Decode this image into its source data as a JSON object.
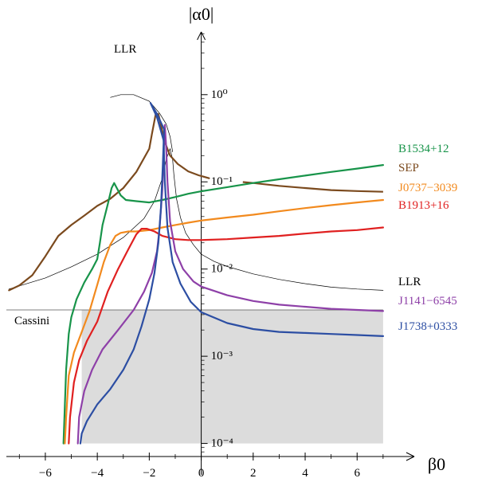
{
  "chart_data": {
    "type": "line",
    "title": "",
    "xlabel": "β0",
    "ylabel": "|α0|",
    "xlim": [
      -7.5,
      8.2
    ],
    "ylog10lim": [
      -4.15,
      0.72
    ],
    "xticks": [
      -6,
      -4,
      -2,
      0,
      2,
      4,
      6
    ],
    "xtick_labels": [
      "−6",
      "−4",
      "−2",
      "0",
      "2",
      "4",
      "6"
    ],
    "yticks_log10": [
      0,
      -1,
      -2,
      -3,
      -4
    ],
    "ytick_labels": [
      "10⁰",
      "10⁻¹",
      "10⁻²",
      "10⁻³",
      "10⁻⁴"
    ],
    "cassini": {
      "label": "Cassini",
      "value": 0.0034,
      "xmin": -7.5,
      "xmax": 7.0
    },
    "excluded_region": {
      "xmin": -4.6,
      "xmax": 7.0,
      "ymin": 0.0001,
      "ymax": 0.0034,
      "color": "#dcdcdc"
    },
    "series": [
      {
        "name": "LLR",
        "label": "LLR",
        "color": "#000000",
        "width": 0.7,
        "points": [
          [
            -7.4,
            0.0059
          ],
          [
            -6,
            0.0079
          ],
          [
            -5,
            0.0106
          ],
          [
            -4,
            0.0148
          ],
          [
            -3,
            0.023
          ],
          [
            -2.2,
            0.038
          ],
          [
            -1.8,
            0.06
          ],
          [
            -1.5,
            0.11
          ],
          [
            -1.35,
            0.18
          ],
          [
            -1.2,
            0.24
          ],
          [
            -1.1,
            0.18
          ],
          [
            -1.05,
            0.12
          ],
          [
            -0.95,
            0.064
          ],
          [
            -0.8,
            0.039
          ],
          [
            -0.6,
            0.026
          ],
          [
            -0.3,
            0.019
          ],
          [
            0,
            0.0148
          ],
          [
            0.5,
            0.0122
          ],
          [
            1,
            0.0107
          ],
          [
            2,
            0.0088
          ],
          [
            3,
            0.0076
          ],
          [
            4,
            0.0068
          ],
          [
            5,
            0.0062
          ],
          [
            6,
            0.0059
          ],
          [
            7,
            0.0057
          ]
        ],
        "upper_branch": [
          [
            -3.5,
            0.93
          ],
          [
            -3.1,
            1.0
          ],
          [
            -2.6,
            1.0
          ],
          [
            -2.0,
            0.84
          ],
          [
            -1.6,
            0.61
          ],
          [
            -1.35,
            0.46
          ],
          [
            -1.2,
            0.33
          ],
          [
            -1.1,
            0.22
          ]
        ]
      },
      {
        "name": "SEP",
        "label": "SEP",
        "color": "#7b4a1e",
        "width": 2.2,
        "points": [
          [
            -7.4,
            0.0057
          ],
          [
            -7.0,
            0.0065
          ],
          [
            -6.5,
            0.0085
          ],
          [
            -6,
            0.014
          ],
          [
            -5.5,
            0.024
          ],
          [
            -5,
            0.032
          ],
          [
            -4.5,
            0.041
          ],
          [
            -4,
            0.053
          ],
          [
            -3.5,
            0.064
          ],
          [
            -3,
            0.085
          ],
          [
            -2.5,
            0.13
          ],
          [
            -2.0,
            0.24
          ],
          [
            -1.9,
            0.35
          ],
          [
            -1.75,
            0.6
          ],
          [
            -1.65,
            0.6
          ],
          [
            -1.5,
            0.38
          ],
          [
            -1.35,
            0.26
          ],
          [
            -1.2,
            0.2
          ],
          [
            -0.9,
            0.16
          ],
          [
            -0.5,
            0.132
          ],
          [
            -0.1,
            0.119
          ],
          [
            0.3,
            0.11
          ]
        ],
        "right_branch": [
          [
            1.6,
            0.0995
          ],
          [
            2,
            0.097
          ],
          [
            3,
            0.09
          ],
          [
            4,
            0.085
          ],
          [
            5,
            0.0805
          ],
          [
            6,
            0.0785
          ],
          [
            7,
            0.077
          ]
        ]
      },
      {
        "name": "B1534+12",
        "label": "B1534+12",
        "color": "#18944a",
        "width": 2.2,
        "points": [
          [
            -5.3,
            0.0001
          ],
          [
            -5.2,
            0.0007
          ],
          [
            -5.1,
            0.0018
          ],
          [
            -5,
            0.0028
          ],
          [
            -4.8,
            0.0045
          ],
          [
            -4.5,
            0.007
          ],
          [
            -4.2,
            0.01
          ],
          [
            -4,
            0.013
          ],
          [
            -3.9,
            0.02
          ],
          [
            -3.8,
            0.032
          ],
          [
            -3.6,
            0.055
          ],
          [
            -3.45,
            0.085
          ],
          [
            -3.35,
            0.097
          ],
          [
            -3.25,
            0.085
          ],
          [
            -3.1,
            0.07
          ],
          [
            -2.9,
            0.062
          ],
          [
            -2.5,
            0.06
          ],
          [
            -2.0,
            0.058
          ],
          [
            -1.5,
            0.062
          ],
          [
            -1.0,
            0.067
          ],
          [
            -0.5,
            0.073
          ],
          [
            0,
            0.078
          ],
          [
            1,
            0.087
          ],
          [
            2,
            0.097
          ],
          [
            3,
            0.107
          ],
          [
            4,
            0.118
          ],
          [
            5,
            0.13
          ],
          [
            6,
            0.142
          ],
          [
            7,
            0.156
          ]
        ]
      },
      {
        "name": "J0737-3039",
        "label": "J0737−3039",
        "color": "#f28a1e",
        "width": 2.2,
        "points": [
          [
            -5.25,
            0.0001
          ],
          [
            -5.2,
            0.0002
          ],
          [
            -5.1,
            0.0006
          ],
          [
            -4.9,
            0.0011
          ],
          [
            -4.6,
            0.0019
          ],
          [
            -4.3,
            0.0033
          ],
          [
            -4.0,
            0.0066
          ],
          [
            -3.75,
            0.012
          ],
          [
            -3.5,
            0.019
          ],
          [
            -3.3,
            0.024
          ],
          [
            -3.1,
            0.026
          ],
          [
            -2.8,
            0.027
          ],
          [
            -2.5,
            0.027
          ],
          [
            -2.0,
            0.028
          ],
          [
            -1.5,
            0.03
          ],
          [
            -1,
            0.032
          ],
          [
            -0.5,
            0.034
          ],
          [
            0,
            0.036
          ],
          [
            1,
            0.039
          ],
          [
            2,
            0.042
          ],
          [
            3,
            0.046
          ],
          [
            4,
            0.05
          ],
          [
            5,
            0.054
          ],
          [
            6,
            0.058
          ],
          [
            7,
            0.062
          ]
        ]
      },
      {
        "name": "B1913+16",
        "label": "B1913+16",
        "color": "#e02020",
        "width": 2.2,
        "points": [
          [
            -5.1,
            0.0001
          ],
          [
            -5.05,
            0.0002
          ],
          [
            -4.9,
            0.0005
          ],
          [
            -4.7,
            0.0009
          ],
          [
            -4.4,
            0.0015
          ],
          [
            -4.0,
            0.0025
          ],
          [
            -3.6,
            0.0055
          ],
          [
            -3.2,
            0.01
          ],
          [
            -2.8,
            0.017
          ],
          [
            -2.5,
            0.025
          ],
          [
            -2.3,
            0.029
          ],
          [
            -2.1,
            0.029
          ],
          [
            -1.8,
            0.027
          ],
          [
            -1.5,
            0.024
          ],
          [
            -1,
            0.022
          ],
          [
            -0.5,
            0.0215
          ],
          [
            0,
            0.0215
          ],
          [
            1,
            0.022
          ],
          [
            2,
            0.023
          ],
          [
            3,
            0.024
          ],
          [
            4,
            0.0255
          ],
          [
            5,
            0.027
          ],
          [
            6,
            0.028
          ],
          [
            7,
            0.03
          ]
        ]
      },
      {
        "name": "J1141-6545",
        "label": "J1141−6545",
        "color": "#8e40a8",
        "width": 2.2,
        "points": [
          [
            -4.75,
            0.0001
          ],
          [
            -4.7,
            0.0002
          ],
          [
            -4.5,
            0.0004
          ],
          [
            -4.2,
            0.0007
          ],
          [
            -3.8,
            0.0012
          ],
          [
            -3.2,
            0.002
          ],
          [
            -2.6,
            0.0034
          ],
          [
            -2.2,
            0.0055
          ],
          [
            -1.9,
            0.009
          ],
          [
            -1.7,
            0.016
          ],
          [
            -1.6,
            0.03
          ],
          [
            -1.5,
            0.08
          ],
          [
            -1.45,
            0.2
          ],
          [
            -1.4,
            0.45
          ],
          [
            -1.35,
            0.25
          ],
          [
            -1.3,
            0.1
          ],
          [
            -1.2,
            0.035
          ],
          [
            -1.0,
            0.016
          ],
          [
            -0.7,
            0.01
          ],
          [
            -0.3,
            0.0072
          ],
          [
            0,
            0.0063
          ],
          [
            1,
            0.005
          ],
          [
            2,
            0.0043
          ],
          [
            3,
            0.0039
          ],
          [
            4,
            0.0037
          ],
          [
            5,
            0.0035
          ],
          [
            6,
            0.0034
          ],
          [
            7,
            0.0033
          ]
        ]
      },
      {
        "name": "J1738+0333",
        "label": "J1738+0333",
        "color": "#2c4ea3",
        "width": 2.2,
        "points": [
          [
            -4.65,
            0.0001
          ],
          [
            -4.6,
            0.00013
          ],
          [
            -4.4,
            0.00018
          ],
          [
            -4.0,
            0.00028
          ],
          [
            -3.5,
            0.00042
          ],
          [
            -3.0,
            0.0007
          ],
          [
            -2.6,
            0.0012
          ],
          [
            -2.3,
            0.0022
          ],
          [
            -2.0,
            0.0045
          ],
          [
            -1.8,
            0.009
          ],
          [
            -1.65,
            0.02
          ],
          [
            -1.55,
            0.05
          ],
          [
            -1.48,
            0.15
          ],
          [
            -1.43,
            0.4
          ],
          [
            -1.7,
            0.6
          ],
          [
            -1.95,
            0.8
          ],
          [
            -1.7,
            0.55
          ],
          [
            -1.45,
            0.3
          ],
          [
            -1.4,
            0.1
          ],
          [
            -1.3,
            0.03
          ],
          [
            -1.1,
            0.012
          ],
          [
            -0.8,
            0.0068
          ],
          [
            -0.4,
            0.0042
          ],
          [
            0,
            0.0032
          ],
          [
            1,
            0.0024
          ],
          [
            2,
            0.00205
          ],
          [
            3,
            0.0019
          ],
          [
            4,
            0.00185
          ],
          [
            5,
            0.0018
          ],
          [
            6,
            0.00175
          ],
          [
            7,
            0.0017
          ]
        ]
      }
    ],
    "right_labels_order": [
      "B1534+12",
      "SEP",
      "J0737−3039",
      "B1913+16",
      "LLR",
      "J1141−6545",
      "J1738+0333"
    ]
  }
}
